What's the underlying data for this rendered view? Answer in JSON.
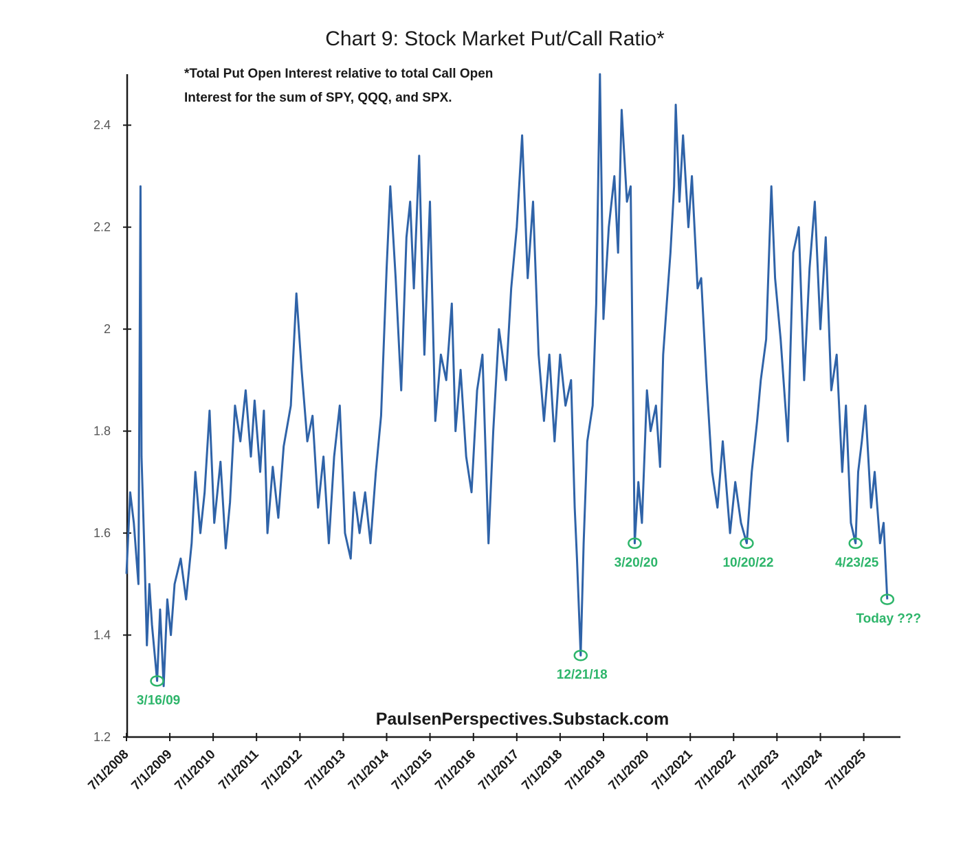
{
  "chart_data": {
    "type": "line",
    "title": "Chart 9: Stock Market Put/Call Ratio*",
    "subtitle_lines": [
      "*Total Put Open Interest relative to total Call Open",
      "Interest for the sum of SPY, QQQ, and SPX."
    ],
    "source": "PaulsenPerspectives.Substack.com",
    "xlabel": "",
    "ylabel": "",
    "ylim": [
      1.2,
      2.5
    ],
    "yticks": [
      {
        "value": 1.2,
        "label": "1.2"
      },
      {
        "value": 1.4,
        "label": "1.4"
      },
      {
        "value": 1.6,
        "label": "1.6"
      },
      {
        "value": 1.8,
        "label": "1.8"
      },
      {
        "value": 2.0,
        "label": "2"
      },
      {
        "value": 2.2,
        "label": "2.2"
      },
      {
        "value": 2.4,
        "label": "2.4"
      }
    ],
    "xlim": [
      "2008-07-01",
      "2026-03-15"
    ],
    "xticks": [
      "7/1/2008",
      "7/1/2009",
      "7/1/2010",
      "7/1/2011",
      "7/1/2012",
      "7/1/2013",
      "7/1/2014",
      "7/1/2015",
      "7/1/2016",
      "7/1/2017",
      "7/1/2018",
      "7/1/2019",
      "7/1/2020",
      "7/1/2021",
      "7/1/2022",
      "7/1/2023",
      "7/1/2024",
      "7/1/2025"
    ],
    "series": [
      {
        "color": "#2f63a8",
        "points": [
          [
            "2008-07-01",
            1.52
          ],
          [
            "2008-08-01",
            1.68
          ],
          [
            "2008-09-01",
            1.62
          ],
          [
            "2008-10-10",
            1.5
          ],
          [
            "2008-10-27",
            2.28
          ],
          [
            "2008-11-05",
            1.75
          ],
          [
            "2008-12-01",
            1.55
          ],
          [
            "2008-12-20",
            1.38
          ],
          [
            "2009-01-10",
            1.5
          ],
          [
            "2009-02-01",
            1.42
          ],
          [
            "2009-03-16",
            1.31
          ],
          [
            "2009-04-10",
            1.45
          ],
          [
            "2009-05-10",
            1.3
          ],
          [
            "2009-06-10",
            1.47
          ],
          [
            "2009-07-10",
            1.4
          ],
          [
            "2009-08-10",
            1.5
          ],
          [
            "2009-10-01",
            1.55
          ],
          [
            "2009-11-15",
            1.47
          ],
          [
            "2010-01-01",
            1.58
          ],
          [
            "2010-02-01",
            1.72
          ],
          [
            "2010-03-15",
            1.6
          ],
          [
            "2010-04-20",
            1.68
          ],
          [
            "2010-06-01",
            1.84
          ],
          [
            "2010-07-10",
            1.62
          ],
          [
            "2010-09-01",
            1.74
          ],
          [
            "2010-10-15",
            1.57
          ],
          [
            "2010-11-20",
            1.66
          ],
          [
            "2011-01-01",
            1.85
          ],
          [
            "2011-02-15",
            1.78
          ],
          [
            "2011-04-01",
            1.88
          ],
          [
            "2011-05-15",
            1.75
          ],
          [
            "2011-06-15",
            1.86
          ],
          [
            "2011-08-01",
            1.72
          ],
          [
            "2011-09-01",
            1.84
          ],
          [
            "2011-10-01",
            1.6
          ],
          [
            "2011-11-15",
            1.73
          ],
          [
            "2012-01-01",
            1.63
          ],
          [
            "2012-02-15",
            1.77
          ],
          [
            "2012-04-15",
            1.85
          ],
          [
            "2012-06-01",
            2.07
          ],
          [
            "2012-07-15",
            1.92
          ],
          [
            "2012-09-01",
            1.78
          ],
          [
            "2012-10-15",
            1.83
          ],
          [
            "2012-12-01",
            1.65
          ],
          [
            "2013-01-15",
            1.75
          ],
          [
            "2013-03-01",
            1.58
          ],
          [
            "2013-04-15",
            1.75
          ],
          [
            "2013-06-01",
            1.85
          ],
          [
            "2013-07-15",
            1.6
          ],
          [
            "2013-09-01",
            1.55
          ],
          [
            "2013-10-01",
            1.68
          ],
          [
            "2013-11-15",
            1.6
          ],
          [
            "2014-01-01",
            1.68
          ],
          [
            "2014-02-15",
            1.58
          ],
          [
            "2014-04-01",
            1.72
          ],
          [
            "2014-05-15",
            1.83
          ],
          [
            "2014-07-01",
            2.12
          ],
          [
            "2014-08-01",
            2.28
          ],
          [
            "2014-09-15",
            2.1
          ],
          [
            "2014-11-01",
            1.88
          ],
          [
            "2014-12-15",
            2.18
          ],
          [
            "2015-01-15",
            2.25
          ],
          [
            "2015-02-15",
            2.08
          ],
          [
            "2015-04-01",
            2.34
          ],
          [
            "2015-05-15",
            1.95
          ],
          [
            "2015-07-01",
            2.25
          ],
          [
            "2015-08-15",
            1.82
          ],
          [
            "2015-10-01",
            1.95
          ],
          [
            "2015-11-15",
            1.9
          ],
          [
            "2016-01-01",
            2.05
          ],
          [
            "2016-02-01",
            1.8
          ],
          [
            "2016-03-15",
            1.92
          ],
          [
            "2016-05-01",
            1.75
          ],
          [
            "2016-06-15",
            1.68
          ],
          [
            "2016-08-01",
            1.88
          ],
          [
            "2016-09-15",
            1.95
          ],
          [
            "2016-11-05",
            1.58
          ],
          [
            "2016-12-15",
            1.8
          ],
          [
            "2017-02-01",
            2.0
          ],
          [
            "2017-04-01",
            1.9
          ],
          [
            "2017-05-15",
            2.08
          ],
          [
            "2017-07-01",
            2.2
          ],
          [
            "2017-08-15",
            2.38
          ],
          [
            "2017-10-01",
            2.1
          ],
          [
            "2017-11-15",
            2.25
          ],
          [
            "2018-01-01",
            1.95
          ],
          [
            "2018-02-15",
            1.82
          ],
          [
            "2018-04-01",
            1.95
          ],
          [
            "2018-05-15",
            1.78
          ],
          [
            "2018-07-01",
            1.95
          ],
          [
            "2018-08-15",
            1.85
          ],
          [
            "2018-10-01",
            1.9
          ],
          [
            "2018-11-01",
            1.65
          ],
          [
            "2018-11-20",
            1.55
          ],
          [
            "2018-12-21",
            1.36
          ],
          [
            "2019-01-15",
            1.58
          ],
          [
            "2019-02-15",
            1.78
          ],
          [
            "2019-04-01",
            1.85
          ],
          [
            "2019-05-01",
            2.05
          ],
          [
            "2019-06-01",
            2.5
          ],
          [
            "2019-07-01",
            2.02
          ],
          [
            "2019-08-15",
            2.2
          ],
          [
            "2019-10-01",
            2.3
          ],
          [
            "2019-11-01",
            2.15
          ],
          [
            "2019-12-01",
            2.43
          ],
          [
            "2020-01-15",
            2.25
          ],
          [
            "2020-02-15",
            2.28
          ],
          [
            "2020-03-20",
            1.58
          ],
          [
            "2020-04-20",
            1.7
          ],
          [
            "2020-05-20",
            1.62
          ],
          [
            "2020-07-01",
            1.88
          ],
          [
            "2020-08-01",
            1.8
          ],
          [
            "2020-09-15",
            1.85
          ],
          [
            "2020-10-20",
            1.73
          ],
          [
            "2020-11-15",
            1.95
          ],
          [
            "2020-12-15",
            2.05
          ],
          [
            "2021-01-15",
            2.15
          ],
          [
            "2021-02-15",
            2.28
          ],
          [
            "2021-03-01",
            2.44
          ],
          [
            "2021-04-01",
            2.25
          ],
          [
            "2021-05-01",
            2.38
          ],
          [
            "2021-06-15",
            2.2
          ],
          [
            "2021-07-15",
            2.3
          ],
          [
            "2021-09-01",
            2.08
          ],
          [
            "2021-10-01",
            2.1
          ],
          [
            "2021-11-15",
            1.9
          ],
          [
            "2022-01-01",
            1.72
          ],
          [
            "2022-02-15",
            1.65
          ],
          [
            "2022-04-01",
            1.78
          ],
          [
            "2022-06-01",
            1.6
          ],
          [
            "2022-07-15",
            1.7
          ],
          [
            "2022-09-01",
            1.62
          ],
          [
            "2022-10-20",
            1.58
          ],
          [
            "2022-12-01",
            1.72
          ],
          [
            "2023-01-15",
            1.82
          ],
          [
            "2023-02-15",
            1.9
          ],
          [
            "2023-04-01",
            1.98
          ],
          [
            "2023-05-15",
            2.28
          ],
          [
            "2023-06-15",
            2.1
          ],
          [
            "2023-08-01",
            1.98
          ],
          [
            "2023-10-01",
            1.78
          ],
          [
            "2023-11-15",
            2.15
          ],
          [
            "2024-01-01",
            2.2
          ],
          [
            "2024-02-15",
            1.9
          ],
          [
            "2024-04-01",
            2.12
          ],
          [
            "2024-05-15",
            2.25
          ],
          [
            "2024-07-01",
            2.0
          ],
          [
            "2024-08-15",
            2.18
          ],
          [
            "2024-10-01",
            1.88
          ],
          [
            "2024-11-15",
            1.95
          ],
          [
            "2025-01-01",
            1.72
          ],
          [
            "2025-02-01",
            1.85
          ],
          [
            "2025-03-15",
            1.62
          ],
          [
            "2025-04-23",
            1.58
          ],
          [
            "2025-05-15",
            1.72
          ],
          [
            "2025-06-15",
            1.78
          ],
          [
            "2025-07-15",
            1.85
          ],
          [
            "2025-09-01",
            1.65
          ],
          [
            "2025-10-01",
            1.72
          ],
          [
            "2025-11-15",
            1.58
          ],
          [
            "2025-12-15",
            1.62
          ],
          [
            "2026-01-15",
            1.47
          ]
        ]
      }
    ],
    "annotations": [
      {
        "date": "2009-03-16",
        "value": 1.31,
        "label": "3/16/09",
        "label_position": "below"
      },
      {
        "date": "2018-12-21",
        "value": 1.36,
        "label": "12/21/18",
        "label_position": "below"
      },
      {
        "date": "2020-03-20",
        "value": 1.58,
        "label": "3/20/20",
        "label_position": "below"
      },
      {
        "date": "2022-10-20",
        "value": 1.58,
        "label": "10/20/22",
        "label_position": "below"
      },
      {
        "date": "2025-04-23",
        "value": 1.58,
        "label": "4/23/25",
        "label_position": "below"
      },
      {
        "date": "2026-01-15",
        "value": 1.47,
        "label": "Today ???",
        "label_position": "below"
      }
    ],
    "grid": false,
    "legend": "none",
    "colors": {
      "line": "#2f63a8",
      "annotation": "#2db56a",
      "axis": "#1a1a1a"
    }
  }
}
